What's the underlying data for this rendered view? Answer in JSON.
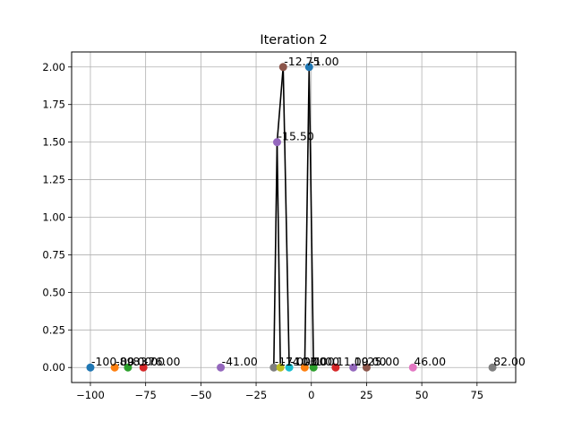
{
  "chart_data": {
    "type": "scatter",
    "title": "Iteration 2",
    "xlabel": "",
    "ylabel": "",
    "xlim": [
      -108.5,
      92.5
    ],
    "ylim": [
      -0.1,
      2.1
    ],
    "xticks": [
      -100,
      -75,
      -50,
      -25,
      0,
      25,
      50,
      75
    ],
    "xtick_labels": [
      "−100",
      "−75",
      "−50",
      "−25",
      "0",
      "25",
      "50",
      "75"
    ],
    "yticks": [
      0,
      0.25,
      0.5,
      0.75,
      1.0,
      1.25,
      1.5,
      1.75,
      2.0
    ],
    "ytick_labels": [
      "0.00",
      "0.25",
      "0.50",
      "0.75",
      "1.00",
      "1.25",
      "1.50",
      "1.75",
      "2.00"
    ],
    "grid": true,
    "points": [
      {
        "x": -100,
        "y": 0,
        "label": "-100.00",
        "color": "#1f77b4"
      },
      {
        "x": -89,
        "y": 0,
        "label": "-89.00",
        "color": "#ff7f0e"
      },
      {
        "x": -83,
        "y": 0,
        "label": "-83.00",
        "color": "#2ca02c"
      },
      {
        "x": -76,
        "y": 0,
        "label": "-76.00",
        "color": "#d62728"
      },
      {
        "x": -41,
        "y": 0,
        "label": "-41.00",
        "color": "#9467bd"
      },
      {
        "x": -17,
        "y": 0,
        "label": "-17.00",
        "color": "#7f7f7f"
      },
      {
        "x": -14,
        "y": 0,
        "label": "-14.00",
        "color": "#bcbd22"
      },
      {
        "x": -10,
        "y": 0,
        "label": "-10.00",
        "color": "#17becf"
      },
      {
        "x": -3,
        "y": 0,
        "label": "-3.00",
        "color": "#ff7f0e"
      },
      {
        "x": 1,
        "y": 0,
        "label": "1.00",
        "color": "#2ca02c"
      },
      {
        "x": 11,
        "y": 0,
        "label": "11.00",
        "color": "#d62728"
      },
      {
        "x": 19,
        "y": 0,
        "label": "19.00",
        "color": "#9467bd"
      },
      {
        "x": 25,
        "y": 0,
        "label": "25.00",
        "color": "#8c564b"
      },
      {
        "x": 46,
        "y": 0,
        "label": "46.00",
        "color": "#e377c2"
      },
      {
        "x": 82,
        "y": 0,
        "label": "82.00",
        "color": "#7f7f7f"
      },
      {
        "x": -15.5,
        "y": 1.5,
        "label": "-15.50",
        "color": "#9467bd"
      },
      {
        "x": -12.75,
        "y": 2.0,
        "label": "-12.75",
        "color": "#8c564b"
      },
      {
        "x": -1,
        "y": 2.0,
        "label": "-1.00",
        "color": "#1f77b4"
      }
    ],
    "edges": [
      [
        [
          -17,
          0
        ],
        [
          -15.5,
          1.5
        ]
      ],
      [
        [
          -14,
          0
        ],
        [
          -15.5,
          1.5
        ]
      ],
      [
        [
          -15.5,
          1.5
        ],
        [
          -12.75,
          2.0
        ]
      ],
      [
        [
          -10,
          0
        ],
        [
          -12.75,
          2.0
        ]
      ],
      [
        [
          -3,
          0
        ],
        [
          -1,
          2.0
        ]
      ],
      [
        [
          1,
          0
        ],
        [
          -1,
          2.0
        ]
      ]
    ]
  }
}
